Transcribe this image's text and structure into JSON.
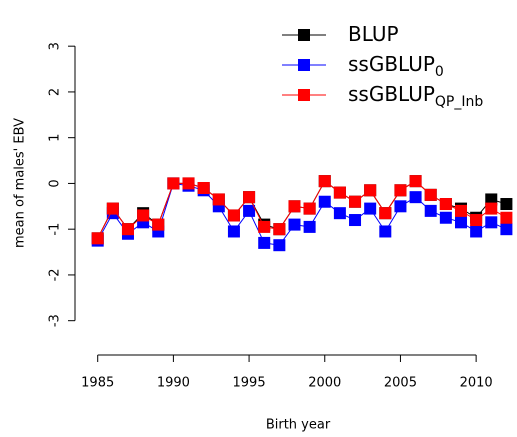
{
  "chart_data": {
    "type": "line",
    "x_label": "Birth year",
    "y_label": "mean of males' EBV",
    "x": [
      1985,
      1986,
      1987,
      1988,
      1989,
      1990,
      1991,
      1992,
      1993,
      1994,
      1995,
      1996,
      1997,
      1998,
      1999,
      2000,
      2001,
      2002,
      2003,
      2004,
      2005,
      2006,
      2007,
      2008,
      2009,
      2010,
      2011,
      2012
    ],
    "series": [
      {
        "name": "BLUP",
        "color": "#000000",
        "values": [
          -1.2,
          -0.55,
          -1.0,
          -0.65,
          -0.9,
          0,
          0,
          -0.1,
          -0.35,
          -0.7,
          -0.3,
          -0.9,
          -1.0,
          -0.5,
          -0.55,
          0.05,
          -0.2,
          -0.4,
          -0.15,
          -0.65,
          -0.15,
          0.05,
          -0.25,
          -0.45,
          -0.55,
          -0.75,
          -0.35,
          -0.45
        ]
      },
      {
        "name": "ssGBLUP",
        "subscript": "0",
        "color": "#0000ff",
        "values": [
          -1.25,
          -0.65,
          -1.1,
          -0.85,
          -1.05,
          0,
          -0.05,
          -0.15,
          -0.5,
          -1.05,
          -0.6,
          -1.3,
          -1.35,
          -0.9,
          -0.95,
          -0.4,
          -0.65,
          -0.8,
          -0.55,
          -1.05,
          -0.5,
          -0.3,
          -0.6,
          -0.75,
          -0.85,
          -1.05,
          -0.85,
          -1.0
        ]
      },
      {
        "name": "ssGBLUP",
        "subscript": "QP_Inb",
        "color": "#ff0000",
        "values": [
          -1.2,
          -0.55,
          -1.0,
          -0.7,
          -0.9,
          0,
          0,
          -0.1,
          -0.35,
          -0.7,
          -0.3,
          -0.95,
          -1.0,
          -0.5,
          -0.55,
          0.05,
          -0.2,
          -0.4,
          -0.15,
          -0.65,
          -0.15,
          0.05,
          -0.25,
          -0.45,
          -0.6,
          -0.8,
          -0.55,
          -0.75
        ]
      }
    ],
    "xlim": [
      1983.5,
      2012.7
    ],
    "ylim": [
      -3.75,
      3.9
    ],
    "xticks": [
      1985,
      1990,
      1995,
      2000,
      2005,
      2010
    ],
    "yticks": [
      -3,
      -2,
      -1,
      0,
      1,
      2,
      3
    ],
    "legend": "top-right"
  }
}
